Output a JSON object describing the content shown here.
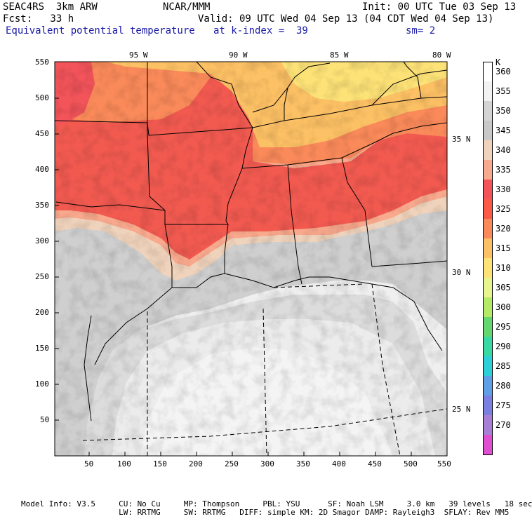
{
  "header": {
    "model": "SEAC4RS  3km ARW",
    "org": "NCAR/MMM",
    "init": "Init: 00 UTC Tue 03 Sep 13",
    "fcst": "Fcst:   33 h",
    "valid": "Valid: 09 UTC Wed 04 Sep 13 (04 CDT Wed 04 Sep 13)",
    "field": "Equivalent potential temperature",
    "level": "at k-index =  39",
    "smooth": "sm= 2"
  },
  "axes": {
    "top_lon": [
      "95 W",
      "90 W",
      "85 W",
      "80 W"
    ],
    "right_lat": [
      "35 N",
      "30 N",
      "25 N"
    ],
    "y_ticks": [
      "550",
      "500",
      "450",
      "400",
      "350",
      "300",
      "250",
      "200",
      "150",
      "100",
      "50"
    ],
    "x_ticks": [
      "50",
      "100",
      "150",
      "200",
      "250",
      "300",
      "350",
      "400",
      "450",
      "500",
      "550"
    ]
  },
  "colorbar": {
    "unit": "K",
    "levels": [
      {
        "label": "360",
        "color": "#ffffff"
      },
      {
        "label": "355",
        "color": "#f2f2f2"
      },
      {
        "label": "350",
        "color": "#d4d4d4"
      },
      {
        "label": "345",
        "color": "#c8c8c8"
      },
      {
        "label": "340",
        "color": "#f0d3bc"
      },
      {
        "label": "335",
        "color": "#f9a98d"
      },
      {
        "label": "330",
        "color": "#f2545a"
      },
      {
        "label": "325",
        "color": "#fb5a47"
      },
      {
        "label": "320",
        "color": "#fa8a5a"
      },
      {
        "label": "315",
        "color": "#fdc165"
      },
      {
        "label": "310",
        "color": "#fde277"
      },
      {
        "label": "305",
        "color": "#e8f48c"
      },
      {
        "label": "300",
        "color": "#b5ea67"
      },
      {
        "label": "295",
        "color": "#62d86f"
      },
      {
        "label": "290",
        "color": "#39d9a4"
      },
      {
        "label": "285",
        "color": "#2bd0d8"
      },
      {
        "label": "280",
        "color": "#5f9fe8"
      },
      {
        "label": "275",
        "color": "#7c7fe2"
      },
      {
        "label": "270",
        "color": "#a780d6"
      },
      {
        "label": "",
        "color": "#e04fd2"
      }
    ]
  },
  "footer": {
    "line1": "Model Info: V3.5     CU: No Cu     MP: Thompson     PBL: YSU      SF: Noah LSM     3.0 km   39 levels   18 sec",
    "line2": "                     LW: RRTMG     SW: RRTMG   DIFF: simple KM: 2D Smagor DAMP: Rayleigh3  SFLAY: Rev MM5"
  }
}
